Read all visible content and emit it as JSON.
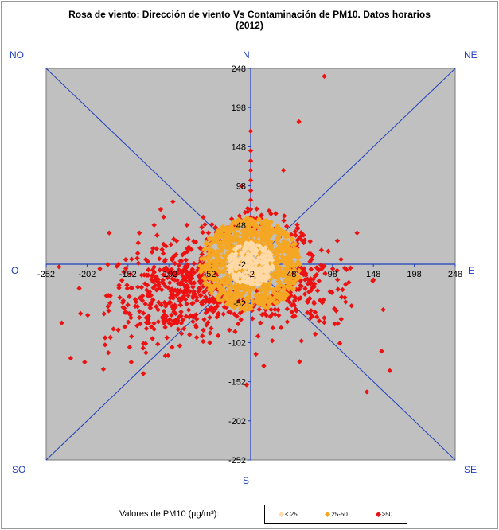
{
  "chart_data": {
    "type": "scatter",
    "title_line1": "Rosa de viento: Dirección de viento Vs Contaminación  de PM10. Datos horarios",
    "title_line2": "(2012)",
    "xlim": [
      -252,
      248
    ],
    "ylim": [
      -252,
      248
    ],
    "x_ticks": [
      -252,
      -202,
      -152,
      -102,
      -52,
      -2,
      48,
      98,
      148,
      198,
      248
    ],
    "y_ticks": [
      248,
      198,
      148,
      98,
      48,
      -2,
      -52,
      -102,
      -152,
      -202,
      -252
    ],
    "compass": {
      "N": "N",
      "NE": "NE",
      "E": "E",
      "SE": "SE",
      "S": "S",
      "SO": "SO",
      "O": "O",
      "NO": "NO"
    },
    "legend_title": "Valores de PM10 (µg/m³):",
    "series": [
      {
        "name": "< 25",
        "color": "#ffd9a6"
      },
      {
        "name": "25-50",
        "color": "#f5a623"
      },
      {
        "name": ">50",
        "color": "#ee1111"
      }
    ],
    "outliers_gt50": [
      [
        88,
        238
      ],
      [
        57,
        180
      ],
      [
        -2,
        168
      ],
      [
        -2,
        143
      ],
      [
        -2,
        130
      ],
      [
        -2,
        118
      ],
      [
        -2,
        105
      ],
      [
        -2,
        92
      ],
      [
        -2,
        80
      ],
      [
        -2,
        68
      ],
      [
        -2,
        58
      ],
      [
        38,
        118
      ],
      [
        -13,
        98
      ],
      [
        -97,
        78
      ],
      [
        -112,
        68
      ],
      [
        -175,
        38
      ],
      [
        128,
        38
      ],
      [
        104,
        28
      ],
      [
        113,
        -7
      ],
      [
        148,
        -22
      ],
      [
        160,
        -60
      ],
      [
        158,
        -113
      ],
      [
        168,
        -138
      ],
      [
        140,
        -165
      ],
      [
        107,
        -103
      ],
      [
        60,
        -100
      ],
      [
        10,
        -77
      ],
      [
        14,
        -132
      ],
      [
        -7,
        -156
      ],
      [
        -210,
        -65
      ],
      [
        -233,
        -77
      ],
      [
        -222,
        -122
      ],
      [
        -205,
        -127
      ],
      [
        -180,
        -96
      ],
      [
        -180,
        -105
      ],
      [
        -176,
        -115
      ],
      [
        -182,
        -136
      ],
      [
        -148,
        -127
      ],
      [
        -122,
        -97
      ],
      [
        -138,
        -70
      ],
      [
        -108,
        -62
      ],
      [
        -52,
        -70
      ],
      [
        -68,
        -72
      ],
      [
        -45,
        45
      ],
      [
        -30,
        20
      ],
      [
        -138,
        38
      ],
      [
        -120,
        48
      ],
      [
        -88,
        2
      ],
      [
        -158,
        -57
      ],
      [
        -60,
        58
      ],
      [
        -80,
        48
      ],
      [
        -96,
        30
      ],
      [
        -140,
        12
      ],
      [
        -157,
        -12
      ],
      [
        -120,
        -85
      ],
      [
        -142,
        -50
      ],
      [
        -164,
        -86
      ],
      [
        -150,
        -108
      ],
      [
        -98,
        -108
      ],
      [
        -130,
        -115
      ]
    ]
  }
}
